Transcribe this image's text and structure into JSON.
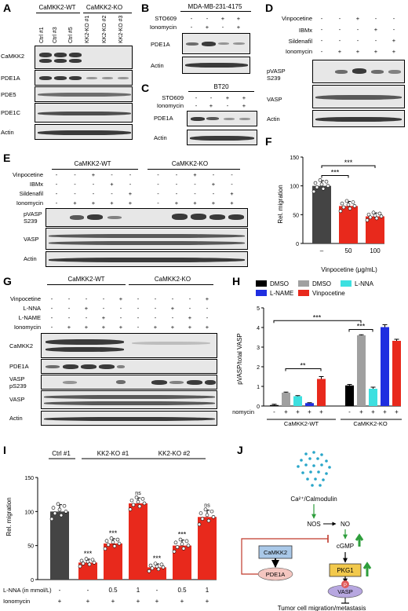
{
  "panels": {
    "A": "A",
    "B": "B",
    "C": "C",
    "D": "D",
    "E": "E",
    "F": "F",
    "G": "G",
    "H": "H",
    "I": "I",
    "J": "J"
  },
  "A": {
    "group1": "CaMKK2-WT",
    "group2": "CaMKK2-KO",
    "lanes": [
      "Ctrl #1",
      "Ctrl #3",
      "Ctrl #5",
      "KK2-KO #1",
      "KK2-KO #2",
      "KK2-KO #3"
    ],
    "blots": [
      "CaMKK2",
      "PDE1A",
      "PDE5",
      "PDE1C",
      "Actin"
    ]
  },
  "B": {
    "title": "MDA-MB-231-4175",
    "rows": [
      {
        "label": "STO609",
        "signs": [
          "-",
          "-",
          "+",
          "+"
        ]
      },
      {
        "label": "Ionomycin",
        "signs": [
          "-",
          "+",
          "-",
          "+"
        ]
      }
    ],
    "blots": [
      "PDE1A",
      "Actin"
    ]
  },
  "C": {
    "title": "BT20",
    "rows": [
      {
        "label": "STO609",
        "signs": [
          "-",
          "-",
          "+",
          "+"
        ]
      },
      {
        "label": "Ionomycin",
        "signs": [
          "-",
          "+",
          "-",
          "+"
        ]
      }
    ],
    "blots": [
      "PDE1A",
      "Actin"
    ]
  },
  "D": {
    "rows": [
      {
        "label": "Vinpocetine",
        "signs": [
          "-",
          "-",
          "+",
          "-",
          "-"
        ]
      },
      {
        "label": "IBMx",
        "signs": [
          "-",
          "-",
          "-",
          "+",
          "-"
        ]
      },
      {
        "label": "Sildenafil",
        "signs": [
          "-",
          "-",
          "-",
          "-",
          "+"
        ]
      },
      {
        "label": "Ionomycin",
        "signs": [
          "-",
          "+",
          "+",
          "+",
          "+"
        ]
      }
    ],
    "blots": [
      "pVASP\nS239",
      "VASP",
      "Actin"
    ]
  },
  "E": {
    "group1": "CaMKK2-WT",
    "group2": "CaMKK2-KO",
    "rows": [
      {
        "label": "Vinpocetine",
        "signs": [
          "-",
          "-",
          "+",
          "-",
          "-",
          "-",
          "-",
          "+",
          "-",
          "-"
        ]
      },
      {
        "label": "IBMx",
        "signs": [
          "-",
          "-",
          "-",
          "+",
          "-",
          "-",
          "-",
          "-",
          "+",
          "-"
        ]
      },
      {
        "label": "Sildenafil",
        "signs": [
          "-",
          "-",
          "-",
          "-",
          "+",
          "-",
          "-",
          "-",
          "-",
          "+"
        ]
      },
      {
        "label": "Ionomycin",
        "signs": [
          "-",
          "+",
          "+",
          "+",
          "+",
          "-",
          "+",
          "+",
          "+",
          "+"
        ]
      }
    ],
    "blots": [
      "pVASP\nS239",
      "VASP",
      "Actin"
    ]
  },
  "F": {
    "ylabel": "Rel. migration",
    "xlabel": "Vinpocetine (μg/mL)",
    "sig": [
      "***",
      "***"
    ]
  },
  "G": {
    "group1": "CaMKK2-WT",
    "group2": "CaMKK2-KO",
    "rows": [
      {
        "label": "Vinpocetine",
        "signs": [
          "-",
          "-",
          "-",
          "-",
          "+",
          "-",
          "-",
          "-",
          "-",
          "+"
        ]
      },
      {
        "label": "L-NNA",
        "signs": [
          "-",
          "-",
          "+",
          "-",
          "-",
          "-",
          "-",
          "+",
          "-",
          "-"
        ]
      },
      {
        "label": "L-NAME",
        "signs": [
          "-",
          "-",
          "-",
          "+",
          "-",
          "-",
          "-",
          "-",
          "+",
          "-"
        ]
      },
      {
        "label": "Ionomycin",
        "signs": [
          "-",
          "+",
          "+",
          "+",
          "+",
          "-",
          "+",
          "+",
          "+",
          "+"
        ]
      }
    ],
    "blots": [
      "CaMKK2",
      "PDE1A",
      "VASP\npS239",
      "VASP",
      "Actin"
    ]
  },
  "H": {
    "ylabel": "pVASP/total VASP",
    "row_label": "Ionomycin",
    "signs": [
      "-",
      "+",
      "+",
      "+",
      "+",
      "-",
      "+",
      "+",
      "+",
      "+"
    ],
    "groups": [
      "CaMKK2-WT",
      "CaMKK2-KO"
    ],
    "sig": [
      "***",
      "***",
      "**"
    ]
  },
  "I": {
    "ylabel": "Rel. migration",
    "groups": [
      "Ctrl #1",
      "KK2-KO #1",
      "KK2-KO #2"
    ],
    "rows": [
      {
        "label": "L-NNA (in mmol/L)",
        "signs": [
          "-",
          "-",
          "0.5",
          "1",
          "-",
          "0.5",
          "1"
        ]
      },
      {
        "label": "Ionomycin",
        "signs": [
          "+",
          "+",
          "+",
          "+",
          "+",
          "+",
          "+"
        ]
      }
    ],
    "sig": [
      "***",
      "***",
      "ns",
      "***",
      "***",
      "ns"
    ]
  },
  "J": {
    "nodes": {
      "ca": "Ca²⁺/Calmodulin",
      "nos": "NOS",
      "no": "NO",
      "cgmp": "cGMP",
      "camkk2": "CaMKK2",
      "pde1a": "PDE1A",
      "pkg1": "PKG1",
      "p": "P",
      "vasp": "VASP",
      "outcome": "Tumor cell migration/metastasis"
    },
    "colors": {
      "dots": "#29a6c9",
      "pkg1": "#f2c94c",
      "pde1a": "#f4c6c0",
      "camkk2": "#a9c8e8",
      "vasp": "#b7a7e0",
      "p": "#e05a5a",
      "up": "#2e9e3c",
      "inhib": "#c0392b"
    }
  },
  "chart_data": [
    {
      "type": "bar",
      "panel": "F",
      "categories": [
        "–",
        "50",
        "100"
      ],
      "values": [
        100,
        65,
        47
      ],
      "errors": [
        9,
        8,
        6
      ],
      "colors": [
        "#444444",
        "#e8291c",
        "#e8291c"
      ],
      "ylabel": "Rel. migration",
      "xlabel": "Vinpocetine (μg/mL)",
      "ylim": [
        0,
        150
      ],
      "yticks": [
        0,
        50,
        100,
        150
      ]
    },
    {
      "type": "bar",
      "panel": "H",
      "categories": [
        "1",
        "2",
        "3",
        "4",
        "5",
        "6",
        "7",
        "8",
        "9",
        "10"
      ],
      "legend": [
        {
          "name": "DMSO",
          "color": "#000000"
        },
        {
          "name": "DMSO",
          "color": "#a0a0a0"
        },
        {
          "name": "L-NNA",
          "color": "#3de0e0"
        },
        {
          "name": "L-NAME",
          "color": "#1f2ee0"
        },
        {
          "name": "Vinpocetine",
          "color": "#e8291c"
        }
      ],
      "values": [
        0.05,
        0.68,
        0.5,
        0.15,
        1.38,
        1.05,
        3.6,
        0.88,
        4.02,
        3.32
      ],
      "errors": [
        0.04,
        0.03,
        0.03,
        0.02,
        0.12,
        0.05,
        0.03,
        0.08,
        0.12,
        0.08
      ],
      "colors": [
        "#000000",
        "#a0a0a0",
        "#3de0e0",
        "#1f2ee0",
        "#e8291c",
        "#000000",
        "#a0a0a0",
        "#3de0e0",
        "#1f2ee0",
        "#e8291c"
      ],
      "ylabel": "pVASP/total VASP",
      "ylim": [
        0,
        5
      ],
      "yticks": [
        0,
        1,
        2,
        3,
        4,
        5
      ]
    },
    {
      "type": "bar",
      "panel": "I",
      "categories": [
        "1",
        "2",
        "3",
        "4",
        "5",
        "6",
        "7"
      ],
      "values": [
        100,
        25,
        53,
        112,
        18,
        50,
        92
      ],
      "errors": [
        10,
        5,
        7,
        8,
        5,
        8,
        10
      ],
      "colors": [
        "#444444",
        "#e8291c",
        "#e8291c",
        "#e8291c",
        "#e8291c",
        "#e8291c",
        "#e8291c"
      ],
      "ylabel": "Rel. migration",
      "ylim": [
        0,
        150
      ],
      "yticks": [
        0,
        50,
        100,
        150
      ]
    }
  ]
}
